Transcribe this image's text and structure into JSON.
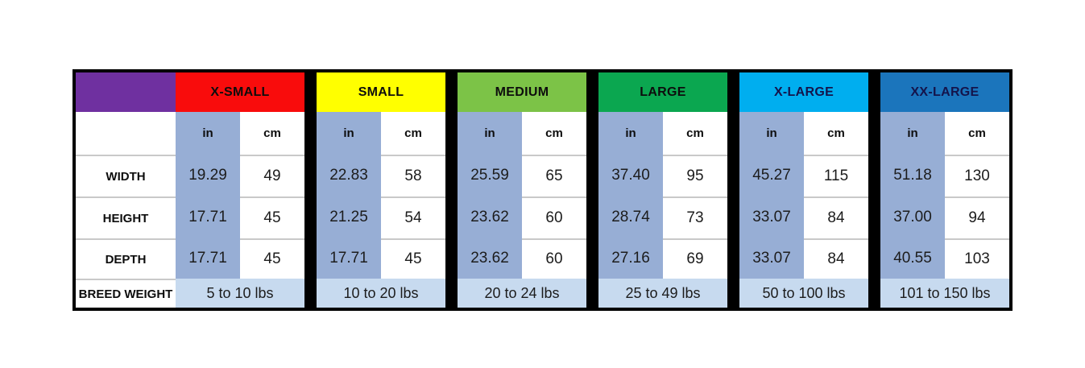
{
  "table": {
    "unit_headers": {
      "in": "in",
      "cm": "cm"
    },
    "row_labels": {
      "width": "WIDTH",
      "height": "HEIGHT",
      "depth": "DEPTH",
      "breed_weight": "BREED WEIGHT"
    },
    "colors": {
      "corner_bg": "#6F30A0",
      "in_column_bg": "#97AED5",
      "breed_row_bg": "#C7DAEF",
      "separator": "#000000",
      "gridline": "#C9C9C9",
      "table_border": "#000000"
    },
    "sizes": [
      {
        "label": "X-SMALL",
        "header_bg": "#F90C0C",
        "header_text": "#0d0d0d",
        "width_in": "19.29",
        "width_cm": "49",
        "height_in": "17.71",
        "height_cm": "45",
        "depth_in": "17.71",
        "depth_cm": "45",
        "breed_weight": "5 to 10 lbs"
      },
      {
        "label": "SMALL",
        "header_bg": "#FFFF00",
        "header_text": "#0d0d0d",
        "width_in": "22.83",
        "width_cm": "58",
        "height_in": "21.25",
        "height_cm": "54",
        "depth_in": "17.71",
        "depth_cm": "45",
        "breed_weight": "10 to 20 lbs"
      },
      {
        "label": "MEDIUM",
        "header_bg": "#7CC347",
        "header_text": "#0d0d0d",
        "width_in": "25.59",
        "width_cm": "65",
        "height_in": "23.62",
        "height_cm": "60",
        "depth_in": "23.62",
        "depth_cm": "60",
        "breed_weight": "20 to 24 lbs"
      },
      {
        "label": "LARGE",
        "header_bg": "#0BA750",
        "header_text": "#0d0d0d",
        "width_in": "37.40",
        "width_cm": "95",
        "height_in": "28.74",
        "height_cm": "73",
        "depth_in": "27.16",
        "depth_cm": "69",
        "breed_weight": "25 to 49 lbs"
      },
      {
        "label": "X-LARGE",
        "header_bg": "#00AEEF",
        "header_text": "#14144B",
        "width_in": "45.27",
        "width_cm": "115",
        "height_in": "33.07",
        "height_cm": "84",
        "depth_in": "33.07",
        "depth_cm": "84",
        "breed_weight": "50 to 100 lbs"
      },
      {
        "label": "XX-LARGE",
        "header_bg": "#1B75BC",
        "header_text": "#14144B",
        "width_in": "51.18",
        "width_cm": "130",
        "height_in": "37.00",
        "height_cm": "94",
        "depth_in": "40.55",
        "depth_cm": "103",
        "breed_weight": "101 to 150 lbs"
      }
    ]
  },
  "chart_data": {
    "type": "table",
    "sizes": [
      "X-SMALL",
      "SMALL",
      "MEDIUM",
      "LARGE",
      "X-LARGE",
      "XX-LARGE"
    ],
    "units": [
      "in",
      "cm"
    ],
    "rows": [
      {
        "label": "WIDTH",
        "in": [
          19.29,
          22.83,
          25.59,
          37.4,
          45.27,
          51.18
        ],
        "cm": [
          49,
          58,
          65,
          95,
          115,
          130
        ]
      },
      {
        "label": "HEIGHT",
        "in": [
          17.71,
          21.25,
          23.62,
          28.74,
          33.07,
          37.0
        ],
        "cm": [
          45,
          54,
          60,
          73,
          84,
          94
        ]
      },
      {
        "label": "DEPTH",
        "in": [
          17.71,
          17.71,
          23.62,
          27.16,
          33.07,
          40.55
        ],
        "cm": [
          45,
          45,
          60,
          69,
          84,
          103
        ]
      },
      {
        "label": "BREED WEIGHT",
        "values": [
          "5 to 10 lbs",
          "10 to 20 lbs",
          "20 to 24 lbs",
          "25 to 49 lbs",
          "50 to 100 lbs",
          "101 to 150 lbs"
        ]
      }
    ],
    "header_colors": [
      "#F90C0C",
      "#FFFF00",
      "#7CC347",
      "#0BA750",
      "#00AEEF",
      "#1B75BC"
    ]
  }
}
